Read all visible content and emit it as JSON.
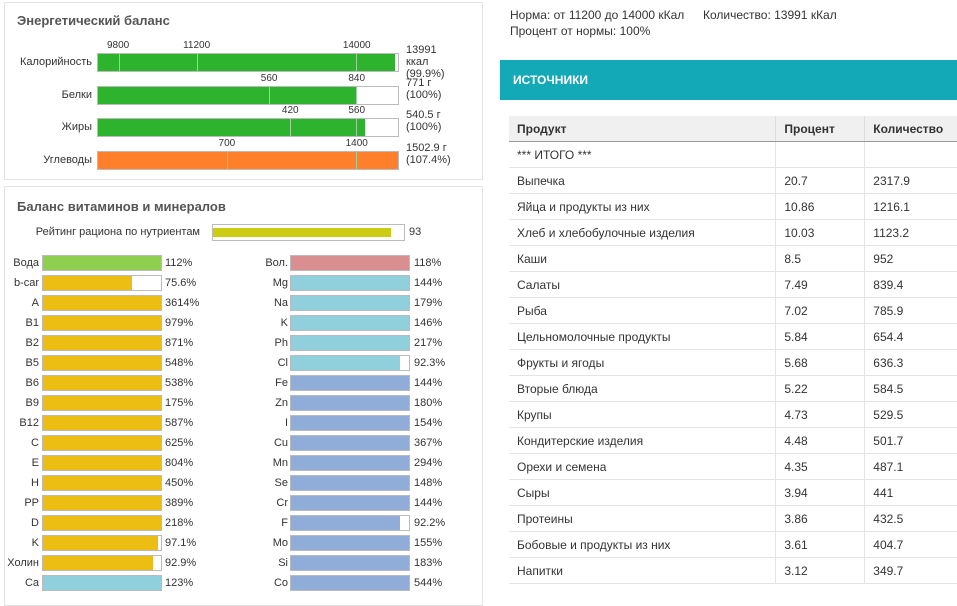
{
  "energy": {
    "title": "Энергетический баланс",
    "rows": [
      {
        "label": "Калорийность",
        "ticks": [
          "9800",
          "11200",
          "14000"
        ],
        "value_line1": "13991",
        "value_line2": "ккал",
        "value_line3": "(99.9%)",
        "fill": 0.99,
        "color": "#2db32d"
      },
      {
        "label": "Белки",
        "ticks": [
          "560",
          "840"
        ],
        "value_line1": "771 г",
        "value_line2": "(100%)",
        "value_line3": "",
        "fill": 0.86,
        "color": "#2db32d"
      },
      {
        "label": "Жиры",
        "ticks": [
          "420",
          "560"
        ],
        "value_line1": "540.5 г",
        "value_line2": "(100%)",
        "value_line3": "",
        "fill": 0.89,
        "color": "#2db32d"
      },
      {
        "label": "Углеводы",
        "ticks": [
          "700",
          "1400"
        ],
        "value_line1": "1502.9 г",
        "value_line2": "(107.4%)",
        "value_line3": "",
        "fill": 1.0,
        "color": "#ff7f2a"
      }
    ]
  },
  "vitamins": {
    "title": "Баланс витаминов и минералов",
    "rating_label": "Рейтинг рациона по нутриентам",
    "rating_value": "93",
    "rating_fill": 0.93,
    "rating_color": "#cccc14",
    "left": [
      {
        "label": "Вода",
        "pct": "112%",
        "fill": 1.0,
        "color": "#8fcf4f"
      },
      {
        "label": "b-car",
        "pct": "75.6%",
        "fill": 0.756,
        "color": "#ecbd13"
      },
      {
        "label": "A",
        "pct": "3614%",
        "fill": 1.0,
        "color": "#ecbd13"
      },
      {
        "label": "B1",
        "pct": "979%",
        "fill": 1.0,
        "color": "#ecbd13"
      },
      {
        "label": "B2",
        "pct": "871%",
        "fill": 1.0,
        "color": "#ecbd13"
      },
      {
        "label": "B5",
        "pct": "548%",
        "fill": 1.0,
        "color": "#ecbd13"
      },
      {
        "label": "B6",
        "pct": "538%",
        "fill": 1.0,
        "color": "#ecbd13"
      },
      {
        "label": "B9",
        "pct": "175%",
        "fill": 1.0,
        "color": "#ecbd13"
      },
      {
        "label": "B12",
        "pct": "587%",
        "fill": 1.0,
        "color": "#ecbd13"
      },
      {
        "label": "C",
        "pct": "625%",
        "fill": 1.0,
        "color": "#ecbd13"
      },
      {
        "label": "E",
        "pct": "804%",
        "fill": 1.0,
        "color": "#ecbd13"
      },
      {
        "label": "H",
        "pct": "450%",
        "fill": 1.0,
        "color": "#ecbd13"
      },
      {
        "label": "PP",
        "pct": "389%",
        "fill": 1.0,
        "color": "#ecbd13"
      },
      {
        "label": "D",
        "pct": "218%",
        "fill": 1.0,
        "color": "#ecbd13"
      },
      {
        "label": "K",
        "pct": "97.1%",
        "fill": 0.971,
        "color": "#ecbd13"
      },
      {
        "label": "Холин",
        "pct": "92.9%",
        "fill": 0.929,
        "color": "#ecbd13"
      },
      {
        "label": "Ca",
        "pct": "123%",
        "fill": 1.0,
        "color": "#8fd0dc"
      }
    ],
    "right": [
      {
        "label": "Вол.",
        "pct": "118%",
        "fill": 1.0,
        "color": "#d98f8f"
      },
      {
        "label": "Mg",
        "pct": "144%",
        "fill": 1.0,
        "color": "#8fd0dc"
      },
      {
        "label": "Na",
        "pct": "179%",
        "fill": 1.0,
        "color": "#8fd0dc"
      },
      {
        "label": "K",
        "pct": "146%",
        "fill": 1.0,
        "color": "#8fd0dc"
      },
      {
        "label": "Ph",
        "pct": "217%",
        "fill": 1.0,
        "color": "#8fd0dc"
      },
      {
        "label": "Cl",
        "pct": "92.3%",
        "fill": 0.923,
        "color": "#8fd0dc"
      },
      {
        "label": "Fe",
        "pct": "144%",
        "fill": 1.0,
        "color": "#90acd8"
      },
      {
        "label": "Zn",
        "pct": "180%",
        "fill": 1.0,
        "color": "#90acd8"
      },
      {
        "label": "I",
        "pct": "154%",
        "fill": 1.0,
        "color": "#90acd8"
      },
      {
        "label": "Cu",
        "pct": "367%",
        "fill": 1.0,
        "color": "#90acd8"
      },
      {
        "label": "Mn",
        "pct": "294%",
        "fill": 1.0,
        "color": "#90acd8"
      },
      {
        "label": "Se",
        "pct": "148%",
        "fill": 1.0,
        "color": "#90acd8"
      },
      {
        "label": "Cr",
        "pct": "144%",
        "fill": 1.0,
        "color": "#90acd8"
      },
      {
        "label": "F",
        "pct": "92.2%",
        "fill": 0.922,
        "color": "#90acd8"
      },
      {
        "label": "Mo",
        "pct": "155%",
        "fill": 1.0,
        "color": "#90acd8"
      },
      {
        "label": "Si",
        "pct": "183%",
        "fill": 1.0,
        "color": "#90acd8"
      },
      {
        "label": "Co",
        "pct": "544%",
        "fill": 1.0,
        "color": "#90acd8"
      }
    ]
  },
  "header": {
    "norm": "Норма: от 11200 до 14000 кКал",
    "quantity": "Количество: 13991 кКал",
    "percent": "Процент от нормы: 100%"
  },
  "sources": {
    "title": "ИСТОЧНИКИ",
    "accent": "#13a9b7",
    "columns": [
      "Продукт",
      "Процент",
      "Количество"
    ],
    "rows": [
      [
        "*** ИТОГО ***",
        "",
        ""
      ],
      [
        "Выпечка",
        "20.7",
        "2317.9"
      ],
      [
        "Яйца и продукты из них",
        "10.86",
        "1216.1"
      ],
      [
        "Хлеб и хлебобулочные изделия",
        "10.03",
        "1123.2"
      ],
      [
        "Каши",
        "8.5",
        "952"
      ],
      [
        "Салаты",
        "7.49",
        "839.4"
      ],
      [
        "Рыба",
        "7.02",
        "785.9"
      ],
      [
        "Цельномолочные продукты",
        "5.84",
        "654.4"
      ],
      [
        "Фрукты и ягоды",
        "5.68",
        "636.3"
      ],
      [
        "Вторые блюда",
        "5.22",
        "584.5"
      ],
      [
        "Крупы",
        "4.73",
        "529.5"
      ],
      [
        "Кондитерские изделия",
        "4.48",
        "501.7"
      ],
      [
        "Орехи и семена",
        "4.35",
        "487.1"
      ],
      [
        "Сыры",
        "3.94",
        "441"
      ],
      [
        "Протеины",
        "3.86",
        "432.5"
      ],
      [
        "Бобовые и продукты из них",
        "3.61",
        "404.7"
      ],
      [
        "Напитки",
        "3.12",
        "349.7"
      ]
    ]
  }
}
